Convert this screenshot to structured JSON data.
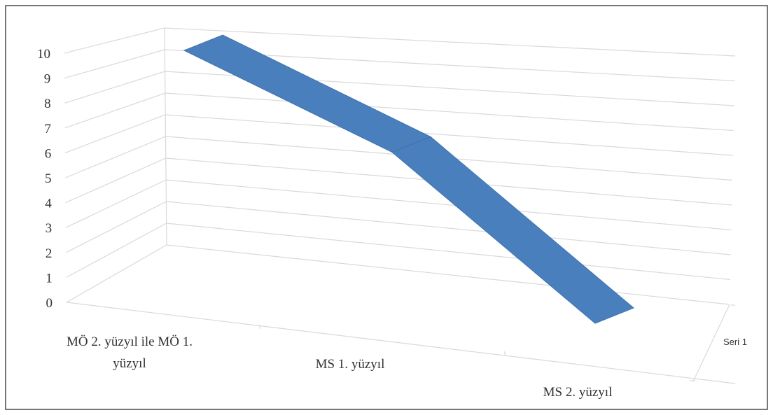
{
  "chart_data": {
    "type": "line",
    "subtype": "3d-line",
    "title": "",
    "xlabel": "",
    "ylabel": "",
    "categories": [
      "MÖ 2. yüzyıl ile MÖ 1. yüzyıl",
      "MS 1. yüzyıl",
      "MS 2. yüzyıl"
    ],
    "category_label_lines": [
      [
        "MÖ 2. yüzyıl ile MÖ 1.",
        "yüzyıl"
      ],
      [
        "MS 1. yüzyıl"
      ],
      [
        "MS 2. yüzyıl"
      ]
    ],
    "series": [
      {
        "name": "Seri 1",
        "values": [
          10,
          6.5,
          0
        ],
        "color": "#4a7fbe"
      }
    ],
    "y_ticks": [
      "0",
      "1",
      "2",
      "3",
      "4",
      "5",
      "6",
      "7",
      "8",
      "9",
      "10"
    ],
    "ylim": [
      0,
      10
    ],
    "grid": true,
    "legend": "none"
  }
}
